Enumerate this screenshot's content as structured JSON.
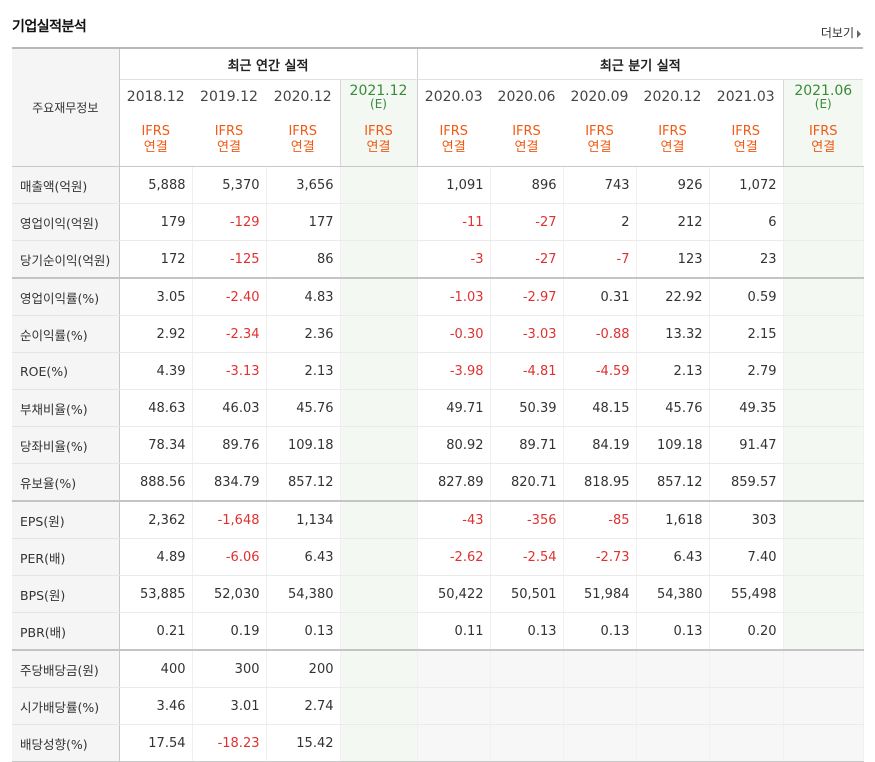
{
  "header": {
    "title": "기업실적분석",
    "more_label": "더보기"
  },
  "table": {
    "row_header": "주요재무정보",
    "annual_group": "최근 연간 실적",
    "quarter_group": "최근 분기 실적",
    "annual_periods": [
      "2018.12",
      "2019.12",
      "2020.12"
    ],
    "annual_estimate": {
      "period": "2021.12",
      "mark": "(E)"
    },
    "quarter_periods": [
      "2020.03",
      "2020.06",
      "2020.09",
      "2020.12",
      "2021.03"
    ],
    "quarter_estimate": {
      "period": "2021.06",
      "mark": "(E)"
    },
    "ifrs_line1": "IFRS",
    "ifrs_line2": "연결",
    "rows": [
      {
        "label": "매출액(억원)",
        "annual": [
          "5,888",
          "5,370",
          "3,656"
        ],
        "quarter": [
          "1,091",
          "896",
          "743",
          "926",
          "1,072"
        ]
      },
      {
        "label": "영업이익(억원)",
        "annual": [
          "179",
          "-129",
          "177"
        ],
        "quarter": [
          "-11",
          "-27",
          "2",
          "212",
          "6"
        ]
      },
      {
        "label": "당기순이익(억원)",
        "annual": [
          "172",
          "-125",
          "86"
        ],
        "quarter": [
          "-3",
          "-27",
          "-7",
          "123",
          "23"
        ]
      },
      {
        "label": "영업이익률(%)",
        "annual": [
          "3.05",
          "-2.40",
          "4.83"
        ],
        "quarter": [
          "-1.03",
          "-2.97",
          "0.31",
          "22.92",
          "0.59"
        ]
      },
      {
        "label": "순이익률(%)",
        "annual": [
          "2.92",
          "-2.34",
          "2.36"
        ],
        "quarter": [
          "-0.30",
          "-3.03",
          "-0.88",
          "13.32",
          "2.15"
        ]
      },
      {
        "label": "ROE(%)",
        "annual": [
          "4.39",
          "-3.13",
          "2.13"
        ],
        "quarter": [
          "-3.98",
          "-4.81",
          "-4.59",
          "2.13",
          "2.79"
        ]
      },
      {
        "label": "부채비율(%)",
        "annual": [
          "48.63",
          "46.03",
          "45.76"
        ],
        "quarter": [
          "49.71",
          "50.39",
          "48.15",
          "45.76",
          "49.35"
        ]
      },
      {
        "label": "당좌비율(%)",
        "annual": [
          "78.34",
          "89.76",
          "109.18"
        ],
        "quarter": [
          "80.92",
          "89.71",
          "84.19",
          "109.18",
          "91.47"
        ]
      },
      {
        "label": "유보율(%)",
        "annual": [
          "888.56",
          "834.79",
          "857.12"
        ],
        "quarter": [
          "827.89",
          "820.71",
          "818.95",
          "857.12",
          "859.57"
        ]
      },
      {
        "label": "EPS(원)",
        "annual": [
          "2,362",
          "-1,648",
          "1,134"
        ],
        "quarter": [
          "-43",
          "-356",
          "-85",
          "1,618",
          "303"
        ]
      },
      {
        "label": "PER(배)",
        "annual": [
          "4.89",
          "-6.06",
          "6.43"
        ],
        "quarter": [
          "-2.62",
          "-2.54",
          "-2.73",
          "6.43",
          "7.40"
        ]
      },
      {
        "label": "BPS(원)",
        "annual": [
          "53,885",
          "52,030",
          "54,380"
        ],
        "quarter": [
          "50,422",
          "50,501",
          "51,984",
          "54,380",
          "55,498"
        ]
      },
      {
        "label": "PBR(배)",
        "annual": [
          "0.21",
          "0.19",
          "0.13"
        ],
        "quarter": [
          "0.11",
          "0.13",
          "0.13",
          "0.13",
          "0.20"
        ]
      },
      {
        "label": "주당배당금(원)",
        "annual": [
          "400",
          "300",
          "200"
        ],
        "quarter": [
          "",
          "",
          "",
          "",
          ""
        ]
      },
      {
        "label": "시가배당률(%)",
        "annual": [
          "3.46",
          "3.01",
          "2.74"
        ],
        "quarter": [
          "",
          "",
          "",
          "",
          ""
        ]
      },
      {
        "label": "배당성향(%)",
        "annual": [
          "17.54",
          "-18.23",
          "15.42"
        ],
        "quarter": [
          "",
          "",
          "",
          "",
          ""
        ]
      }
    ]
  },
  "colors": {
    "negative": "#e03131",
    "ifrs": "#f05a14",
    "estimate": "#3a8a3a"
  }
}
